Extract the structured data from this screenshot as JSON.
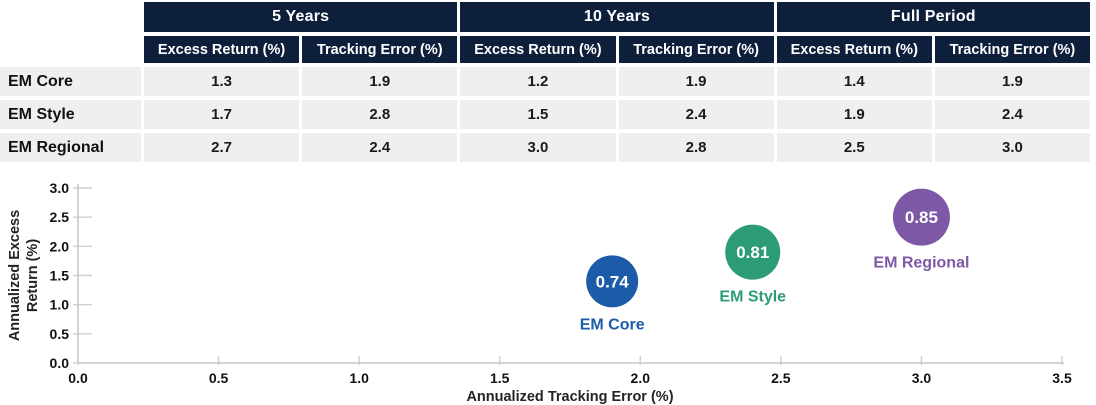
{
  "colors": {
    "header_bg": "#0e1f3c",
    "cell_bg": "#efefef",
    "axis_gray": "#c9c9c9",
    "em_core_blue": "#1b5ba8",
    "em_style_green": "#2b9c77",
    "em_regional_purple": "#7d58a6"
  },
  "table": {
    "groups": [
      {
        "label": "5 Years",
        "columns": [
          "Excess Return (%)",
          "Tracking Error (%)"
        ]
      },
      {
        "label": "10 Years",
        "columns": [
          "Excess Return (%)",
          "Tracking Error (%)"
        ]
      },
      {
        "label": "Full Period",
        "columns": [
          "Excess Return (%)",
          "Tracking Error (%)"
        ]
      }
    ],
    "rows": [
      {
        "label": "EM Core",
        "values": [
          "1.3",
          "1.9",
          "1.2",
          "1.9",
          "1.4",
          "1.9"
        ]
      },
      {
        "label": "EM Style",
        "values": [
          "1.7",
          "2.8",
          "1.5",
          "2.4",
          "1.9",
          "2.4"
        ]
      },
      {
        "label": "EM Regional",
        "values": [
          "2.7",
          "2.4",
          "3.0",
          "2.8",
          "2.5",
          "3.0"
        ]
      }
    ]
  },
  "chart_data": {
    "type": "scatter",
    "xlabel": "Annualized Tracking Error (%)",
    "ylabel": [
      "Annualized Excess",
      "Return (%)"
    ],
    "xlim": [
      0,
      3.5
    ],
    "ylim": [
      0,
      3.0
    ],
    "x_tick_labels": [
      "0.0",
      "0.5",
      "1.0",
      "1.5",
      "2.0",
      "2.5",
      "3.0",
      "3.5"
    ],
    "y_tick_labels": [
      "0.0",
      "0.5",
      "1.0",
      "1.5",
      "2.0",
      "2.5",
      "3.0"
    ],
    "grid": false,
    "legend": "labels-next-to-points",
    "points": [
      {
        "name": "EM Core",
        "x": 1.9,
        "y": 1.4,
        "bubble_label": "0.74",
        "color": "#1b5ba8",
        "radius": 26
      },
      {
        "name": "EM Style",
        "x": 2.4,
        "y": 1.9,
        "bubble_label": "0.81",
        "color": "#2b9c77",
        "radius": 27.5
      },
      {
        "name": "EM Regional",
        "x": 3.0,
        "y": 2.5,
        "bubble_label": "0.85",
        "color": "#7d58a6",
        "radius": 28.5
      }
    ]
  }
}
